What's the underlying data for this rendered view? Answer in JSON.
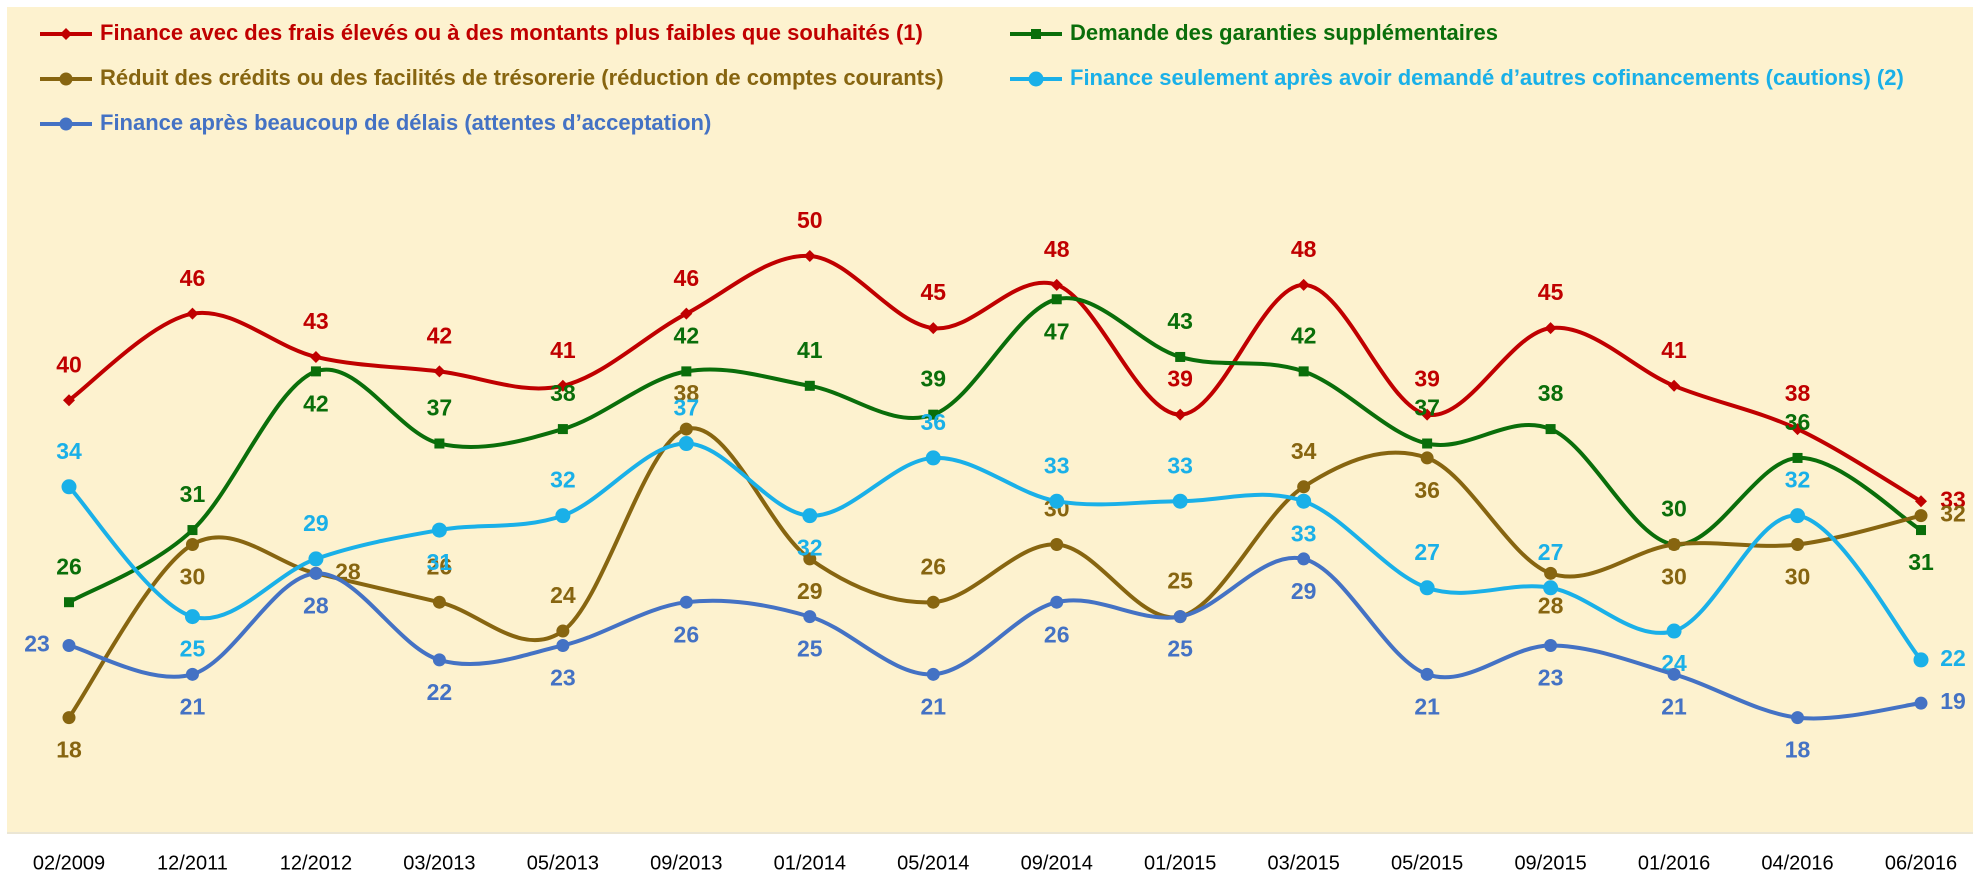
{
  "chart_data": {
    "type": "line",
    "categories": [
      "02/2009",
      "12/2011",
      "12/2012",
      "03/2013",
      "05/2013",
      "09/2013",
      "01/2014",
      "05/2014",
      "09/2014",
      "01/2015",
      "03/2015",
      "05/2015",
      "09/2015",
      "01/2016",
      "04/2016",
      "06/2016"
    ],
    "series": [
      {
        "name": "Finance avec des frais élevés ou à des montants plus faibles que souhaités (1)",
        "color": "#c00000",
        "marker": "diamond",
        "values": [
          40,
          46,
          43,
          42,
          41,
          46,
          50,
          45,
          48,
          39,
          48,
          39,
          45,
          41,
          38,
          33
        ]
      },
      {
        "name": "Demande des garanties supplémentaires",
        "color": "#0a6e0a",
        "marker": "square",
        "values": [
          26,
          31,
          42,
          37,
          38,
          42,
          41,
          39,
          47,
          43,
          42,
          37,
          38,
          30,
          36,
          31
        ]
      },
      {
        "name": "Réduit des crédits ou des facilités de trésorerie (réduction de comptes courants)",
        "color": "#876510",
        "marker": "circle",
        "values": [
          18,
          30,
          28,
          26,
          24,
          38,
          29,
          26,
          30,
          25,
          34,
          36,
          28,
          30,
          30,
          32
        ]
      },
      {
        "name": "Finance seulement après avoir demandé d’autres cofinancements (cautions) (2)",
        "color": "#1ab0e8",
        "marker": "circle",
        "values": [
          34,
          25,
          29,
          31,
          32,
          37,
          32,
          36,
          33,
          33,
          33,
          27,
          27,
          24,
          32,
          22
        ]
      },
      {
        "name": "Finance après beaucoup de délais (attentes d’acceptation)",
        "color": "#4472c4",
        "marker": "circle",
        "values": [
          23,
          21,
          28,
          22,
          23,
          26,
          25,
          21,
          26,
          25,
          29,
          21,
          23,
          21,
          18,
          19
        ]
      }
    ],
    "ylim": [
      10,
      57
    ],
    "grid": false,
    "legend": "top"
  }
}
